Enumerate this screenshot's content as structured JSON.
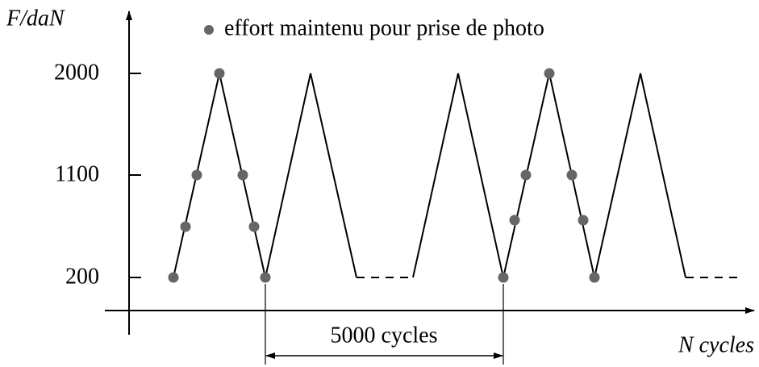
{
  "y_axis": {
    "label": "F/daN",
    "ticks": [
      "2000",
      "1100",
      "200"
    ]
  },
  "x_axis": {
    "label": "N cycles"
  },
  "legend": "effort maintenu pour prise de photo",
  "annotation": "5000 cycles"
}
